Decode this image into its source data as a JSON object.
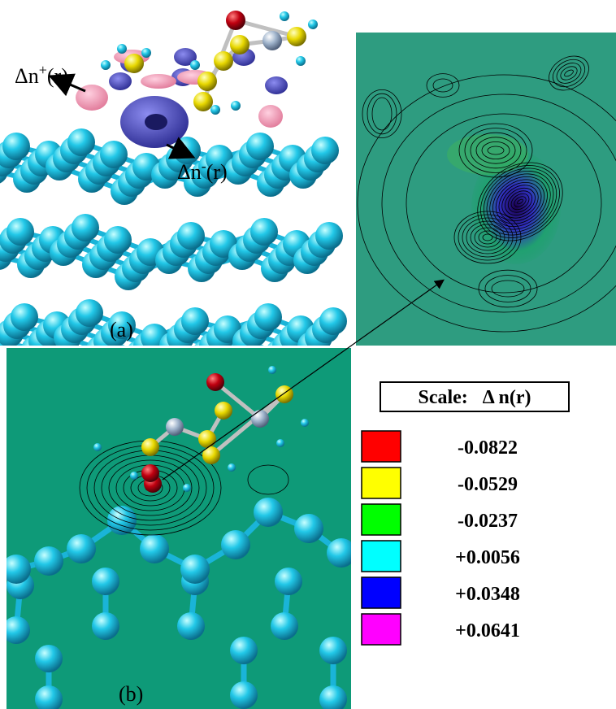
{
  "panels": {
    "a": {
      "label": "(a)",
      "annotations": [
        {
          "symbol": "Δn",
          "sup": "+",
          "arg": "(r)"
        },
        {
          "symbol": "Δn",
          "sup": "-",
          "arg": "(r)"
        }
      ]
    },
    "b": {
      "label": "(b)"
    }
  },
  "scale": {
    "title": "Scale:   Δ n(r)",
    "entries": [
      {
        "color": "#ff0000",
        "label": "-0.0822"
      },
      {
        "color": "#ffff00",
        "label": "-0.0529"
      },
      {
        "color": "#00ff00",
        "label": "-0.0237"
      },
      {
        "color": "#00ffff",
        "label": "+0.0056"
      },
      {
        "color": "#0000ff",
        "label": "+0.0348"
      },
      {
        "color": "#ff00ff",
        "label": "+0.0641"
      }
    ]
  }
}
